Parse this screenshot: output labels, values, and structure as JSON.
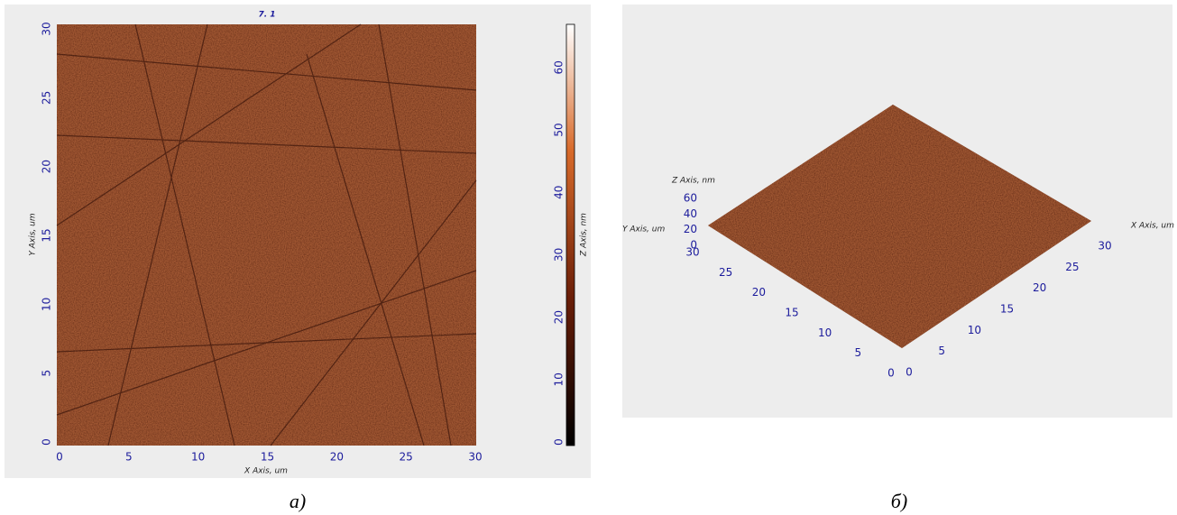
{
  "panel_a": {
    "title": "7. 1",
    "x_axis_label": "X Axis, um",
    "y_axis_label": "Y Axis, um",
    "x_ticks": [
      0,
      5,
      10,
      15,
      20,
      25,
      30
    ],
    "y_ticks": [
      0,
      5,
      10,
      15,
      20,
      25,
      30
    ],
    "colorbar": {
      "label": "Z Axis, nm",
      "ticks": [
        0,
        10,
        20,
        30,
        40,
        50,
        60
      ]
    },
    "caption": "а)"
  },
  "panel_b": {
    "x_axis_label": "X Axis, um",
    "y_axis_label": "Y Axis, um",
    "z_axis_label": "Z Axis, nm",
    "x_ticks": [
      0,
      5,
      10,
      15,
      20,
      25,
      30
    ],
    "y_ticks": [
      0,
      5,
      10,
      15,
      20,
      25,
      30
    ],
    "z_ticks": [
      0,
      20,
      40,
      60
    ],
    "caption": "б)"
  }
}
